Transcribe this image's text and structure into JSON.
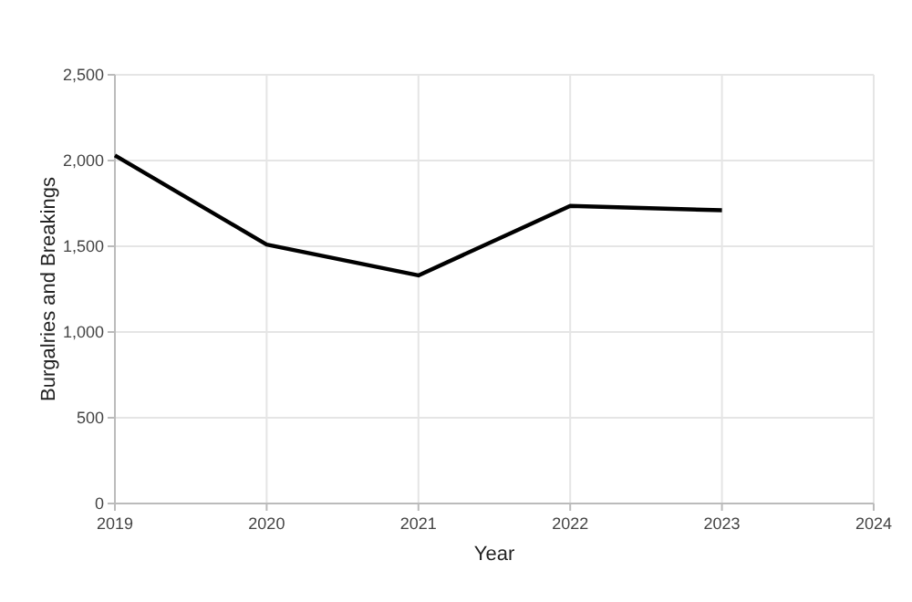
{
  "chart_data": {
    "type": "line",
    "xlabel": "Year",
    "ylabel": "Burgalries and Breakings",
    "x": [
      2019,
      2020,
      2021,
      2022,
      2023
    ],
    "series": [
      {
        "color": "#000000",
        "values": [
          2030,
          1510,
          1330,
          1735,
          1710
        ]
      }
    ],
    "xlim": [
      2019,
      2024
    ],
    "xticks": [
      2019,
      2020,
      2021,
      2022,
      2023,
      2024
    ],
    "ylim": [
      0,
      2500
    ],
    "yticks": [
      {
        "value": 0,
        "label": "0"
      },
      {
        "value": 500,
        "label": "500"
      },
      {
        "value": 1000,
        "label": "1,000"
      },
      {
        "value": 1500,
        "label": "1,500"
      },
      {
        "value": 2000,
        "label": "2,000"
      },
      {
        "value": 2500,
        "label": "2,500"
      }
    ],
    "grid": true,
    "marker": "none",
    "line_style": "solid"
  }
}
